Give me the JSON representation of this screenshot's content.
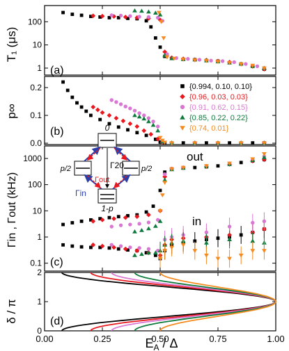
{
  "x_axis": {
    "label_main": "E",
    "label_sub": "A",
    "label_rest": " / Δ",
    "range": [
      0.0,
      1.0
    ],
    "ticks": [
      "0.00",
      "0.25",
      "0.50",
      "0.75",
      "1.00"
    ]
  },
  "legend": [
    {
      "label": "{0.994, 0.10, 0.10}",
      "color": "#000000",
      "marker": "square"
    },
    {
      "label": "{0.96, 0.03, 0.03}",
      "color": "#e8181e",
      "marker": "diamond"
    },
    {
      "label": "{0.91, 0.62, 0.15}",
      "color": "#d977d2",
      "marker": "circle"
    },
    {
      "label": "{0.85, 0.22, 0.22}",
      "color": "#0e7a3c",
      "marker": "triangle-up"
    },
    {
      "label": "{0.74, 0.01}",
      "color": "#f58a1f",
      "marker": "triangle-down"
    }
  ],
  "panels": {
    "a": {
      "tag": "(a)",
      "ylabel": "T₁ (μs)",
      "yticks": [
        "100",
        "10",
        "1"
      ]
    },
    "b": {
      "tag": "(b)",
      "ylabel": "p∞",
      "yticks": [
        "0.0",
        "0.1",
        "0.2"
      ]
    },
    "c": {
      "tag": "(c)",
      "ylabel": "Γin , Γout (kHz)",
      "yticks": [
        "1000",
        "100",
        "10",
        "1",
        "0.1"
      ],
      "annotation_out": "out",
      "annotation_in": "in"
    },
    "d": {
      "tag": "(d)",
      "ylabel": "δ / π",
      "yticks": [
        "0",
        "1",
        "2"
      ]
    }
  },
  "inset": {
    "state_top": "0",
    "state_left": "p/2",
    "state_right": "p/2",
    "state_bottom": "1-p",
    "rate_20": "Γ20",
    "rate_out": "Γout",
    "rate_in": "Γin"
  },
  "chart_data": [
    {
      "panel": "a",
      "type": "scatter",
      "title": "",
      "xlabel": "EA / Δ",
      "ylabel": "T1 (μs)",
      "xlim": [
        0,
        1
      ],
      "ylim": [
        0.5,
        500
      ],
      "yscale": "log",
      "series": [
        {
          "name": "{0.994, 0.10, 0.10}",
          "x": [
            0.08,
            0.12,
            0.16,
            0.2,
            0.24,
            0.28,
            0.32,
            0.36,
            0.4,
            0.44,
            0.46,
            0.48,
            0.5,
            0.52,
            0.55,
            0.6,
            0.65,
            0.7,
            0.75,
            0.8,
            0.85,
            0.9,
            0.95
          ],
          "y": [
            250,
            210,
            190,
            170,
            160,
            150,
            150,
            140,
            135,
            110,
            60,
            20,
            8,
            3.2,
            2.6,
            2.4,
            2.3,
            2.1,
            2.0,
            1.7,
            1.5,
            1.2,
            0.9
          ]
        },
        {
          "name": "{0.96, 0.03, 0.03}",
          "x": [
            0.21,
            0.25,
            0.3,
            0.35,
            0.4,
            0.45,
            0.5,
            0.52,
            0.55,
            0.6,
            0.65,
            0.7,
            0.75,
            0.8,
            0.85,
            0.9,
            0.95
          ],
          "y": [
            180,
            175,
            170,
            160,
            150,
            140,
            120,
            5,
            2.8,
            2.5,
            2.3,
            2.2,
            2.0,
            1.8,
            1.5,
            1.2,
            0.9
          ]
        },
        {
          "name": "{0.91, 0.62, 0.15}",
          "x": [
            0.29,
            0.33,
            0.37,
            0.41,
            0.45,
            0.49,
            0.51,
            0.53,
            0.57,
            0.62,
            0.67,
            0.72,
            0.77,
            0.82,
            0.87,
            0.92,
            0.95
          ],
          "y": [
            190,
            185,
            175,
            165,
            160,
            150,
            110,
            4,
            2.7,
            2.5,
            2.3,
            2.1,
            2.0,
            1.8,
            1.5,
            1.2,
            1.0
          ]
        },
        {
          "name": "{0.85, 0.22, 0.22}",
          "x": [
            0.39,
            0.42,
            0.45,
            0.48,
            0.5,
            0.52,
            0.55,
            0.6,
            0.65,
            0.7,
            0.75,
            0.8,
            0.85,
            0.9,
            0.95
          ],
          "y": [
            300,
            290,
            270,
            240,
            200,
            3.5,
            2.6,
            2.4,
            2.3,
            2.1,
            1.9,
            1.7,
            1.5,
            1.2,
            1.0
          ]
        },
        {
          "name": "{0.74, 0.01}",
          "x": [
            0.495,
            0.505,
            0.515,
            0.53,
            0.56,
            0.6,
            0.65,
            0.7,
            0.75,
            0.8,
            0.85,
            0.9,
            0.95
          ],
          "y": [
            250,
            100,
            20,
            3,
            2.6,
            2.4,
            2.2,
            2.1,
            1.9,
            1.7,
            1.5,
            1.3,
            1.0
          ]
        }
      ]
    },
    {
      "panel": "b",
      "type": "scatter",
      "title": "",
      "xlabel": "EA / Δ",
      "ylabel": "p∞",
      "xlim": [
        0,
        1
      ],
      "ylim": [
        0,
        0.24
      ],
      "series": [
        {
          "name": "{0.994, 0.10, 0.10}",
          "x": [
            0.08,
            0.1,
            0.12,
            0.14,
            0.16,
            0.18,
            0.2,
            0.24,
            0.28,
            0.32,
            0.36,
            0.4,
            0.44,
            0.48,
            0.5,
            0.52,
            0.6,
            0.7,
            0.8,
            0.9,
            0.95
          ],
          "y": [
            0.22,
            0.19,
            0.165,
            0.145,
            0.13,
            0.115,
            0.1,
            0.085,
            0.07,
            0.058,
            0.048,
            0.038,
            0.028,
            0.014,
            0.004,
            0.001,
            0.001,
            0.001,
            0.001,
            0.001,
            0.001
          ]
        },
        {
          "name": "{0.96, 0.03, 0.03}",
          "x": [
            0.21,
            0.23,
            0.25,
            0.28,
            0.31,
            0.34,
            0.37,
            0.4,
            0.43,
            0.46,
            0.49,
            0.51,
            0.55,
            0.65,
            0.75,
            0.85,
            0.95
          ],
          "y": [
            0.13,
            0.12,
            0.11,
            0.1,
            0.09,
            0.08,
            0.07,
            0.06,
            0.045,
            0.032,
            0.015,
            0.003,
            0.001,
            0.001,
            0.001,
            0.001,
            0.001
          ]
        },
        {
          "name": "{0.91, 0.62, 0.15}",
          "x": [
            0.29,
            0.31,
            0.33,
            0.35,
            0.37,
            0.39,
            0.41,
            0.43,
            0.45,
            0.47,
            0.49,
            0.51,
            0.55,
            0.65,
            0.75,
            0.85,
            0.95
          ],
          "y": [
            0.155,
            0.148,
            0.14,
            0.132,
            0.125,
            0.117,
            0.108,
            0.1,
            0.09,
            0.078,
            0.06,
            0.005,
            0.001,
            0.001,
            0.001,
            0.001,
            0.001
          ]
        },
        {
          "name": "{0.85, 0.22, 0.22}",
          "x": [
            0.39,
            0.41,
            0.43,
            0.45,
            0.47,
            0.49,
            0.51,
            0.55,
            0.65,
            0.75,
            0.85,
            0.95
          ],
          "y": [
            0.1,
            0.095,
            0.088,
            0.078,
            0.065,
            0.045,
            0.005,
            0.001,
            0.001,
            0.001,
            0.001,
            0.001
          ]
        },
        {
          "name": "{0.74, 0.01}",
          "x": [
            0.5,
            0.51,
            0.52,
            0.55,
            0.65,
            0.75,
            0.85,
            0.95
          ],
          "y": [
            0.02,
            0.01,
            0.003,
            0.001,
            0.001,
            0.001,
            0.001,
            0.001
          ]
        }
      ]
    },
    {
      "panel": "c",
      "type": "scatter",
      "title": "",
      "xlabel": "EA / Δ",
      "ylabel": "Γin , Γout (kHz)",
      "xlim": [
        0,
        1
      ],
      "ylim": [
        0.05,
        3000
      ],
      "yscale": "log",
      "series": [
        {
          "name": "{0.994, 0.10, 0.10} out",
          "x": [
            0.08,
            0.12,
            0.16,
            0.2,
            0.24,
            0.28,
            0.32,
            0.36,
            0.4,
            0.44,
            0.47,
            0.5,
            0.52,
            0.55,
            0.6,
            0.65,
            0.7,
            0.75,
            0.8,
            0.85,
            0.9,
            0.95
          ],
          "y": [
            3,
            3.5,
            4,
            4.5,
            5,
            5.5,
            6,
            6.5,
            7,
            9,
            15,
            60,
            300,
            400,
            430,
            450,
            480,
            520,
            600,
            700,
            800,
            900
          ]
        },
        {
          "name": "{0.96, 0.03, 0.03} out",
          "x": [
            0.21,
            0.25,
            0.3,
            0.35,
            0.4,
            0.45,
            0.5,
            0.52,
            0.55,
            0.6,
            0.7,
            0.8,
            0.9,
            0.95
          ],
          "y": [
            4,
            4.5,
            5,
            5.5,
            6,
            7,
            10,
            200,
            400,
            440,
            500,
            600,
            800,
            900
          ]
        },
        {
          "name": "{0.91, 0.62, 0.15} out",
          "x": [
            0.29,
            0.33,
            0.37,
            0.41,
            0.45,
            0.49,
            0.52,
            0.55,
            0.6,
            0.7,
            0.8,
            0.9,
            0.95
          ],
          "y": [
            2.5,
            2.8,
            3,
            3.2,
            3.6,
            4.5,
            250,
            400,
            450,
            520,
            650,
            900,
            1200
          ]
        },
        {
          "name": "{0.85, 0.22, 0.22} out",
          "x": [
            0.39,
            0.42,
            0.45,
            0.48,
            0.5,
            0.52,
            0.55,
            0.6,
            0.7,
            0.8,
            0.9,
            0.95
          ],
          "y": [
            1.6,
            1.8,
            2.1,
            2.6,
            4,
            150,
            380,
            430,
            500,
            600,
            850,
            1100
          ]
        },
        {
          "name": "{0.74, 0.01} out",
          "x": [
            0.5,
            0.51,
            0.52,
            0.55,
            0.6,
            0.7,
            0.8,
            0.9,
            0.95
          ],
          "y": [
            10,
            40,
            120,
            400,
            450,
            520,
            650,
            950,
            1500
          ]
        },
        {
          "name": "{0.994, 0.10, 0.10} in",
          "x": [
            0.08,
            0.12,
            0.16,
            0.2,
            0.24,
            0.28,
            0.32,
            0.36,
            0.4,
            0.44,
            0.48,
            0.5,
            0.52,
            0.55,
            0.6,
            0.65,
            0.7,
            0.75,
            0.8,
            0.85,
            0.9,
            0.95
          ],
          "y": [
            0.5,
            0.45,
            0.42,
            0.4,
            0.4,
            0.38,
            0.35,
            0.32,
            0.3,
            0.25,
            0.2,
            0.15,
            0.3,
            0.5,
            0.6,
            0.7,
            0.8,
            0.9,
            1.0,
            1.2,
            1.5,
            2.0
          ]
        },
        {
          "name": "{0.96, 0.03, 0.03} in",
          "x": [
            0.21,
            0.25,
            0.3,
            0.35,
            0.4,
            0.45,
            0.5,
            0.52,
            0.55,
            0.6,
            0.7,
            0.8,
            0.9,
            0.95
          ],
          "y": [
            0.5,
            0.45,
            0.4,
            0.35,
            0.3,
            0.25,
            0.2,
            0.5,
            0.8,
            0.9,
            1.0,
            1.2,
            1.5,
            2.0
          ]
        },
        {
          "name": "{0.91, 0.62, 0.15} in",
          "x": [
            0.29,
            0.33,
            0.37,
            0.41,
            0.45,
            0.49,
            0.52,
            0.55,
            0.6,
            0.7,
            0.8,
            0.9,
            0.95
          ],
          "y": [
            0.5,
            0.45,
            0.4,
            0.38,
            0.35,
            0.3,
            0.8,
            1.0,
            1.2,
            1.5,
            2.5,
            3.5,
            4.0
          ]
        },
        {
          "name": "{0.85, 0.22, 0.22} in",
          "x": [
            0.39,
            0.42,
            0.45,
            0.48,
            0.5,
            0.52,
            0.55,
            0.6,
            0.7,
            0.8,
            0.9,
            0.95
          ],
          "y": [
            0.2,
            0.22,
            0.25,
            0.25,
            0.3,
            0.5,
            0.6,
            0.7,
            0.6,
            0.8,
            0.7,
            0.6
          ]
        },
        {
          "name": "{0.74, 0.01} in",
          "x": [
            0.5,
            0.52,
            0.55,
            0.6,
            0.65,
            0.7,
            0.75,
            0.8,
            0.85,
            0.9,
            0.95
          ],
          "y": [
            0.15,
            0.3,
            0.4,
            0.5,
            0.3,
            0.2,
            0.15,
            0.15,
            0.2,
            0.3,
            0.3
          ]
        }
      ]
    },
    {
      "panel": "d",
      "type": "line",
      "title": "",
      "xlabel": "EA / Δ",
      "ylabel": "δ / π",
      "xlim": [
        0,
        1
      ],
      "ylim": [
        0,
        2
      ],
      "series": [
        {
          "name": "{0.994, 0.10, 0.10}",
          "x_min": 0.075
        },
        {
          "name": "{0.96, 0.03, 0.03}",
          "x_min": 0.2
        },
        {
          "name": "{0.91, 0.62, 0.15}",
          "x_min": 0.29
        },
        {
          "name": "{0.85, 0.22, 0.22}",
          "x_min": 0.39
        },
        {
          "name": "{0.74, 0.01}",
          "x_min": 0.5
        }
      ]
    }
  ]
}
